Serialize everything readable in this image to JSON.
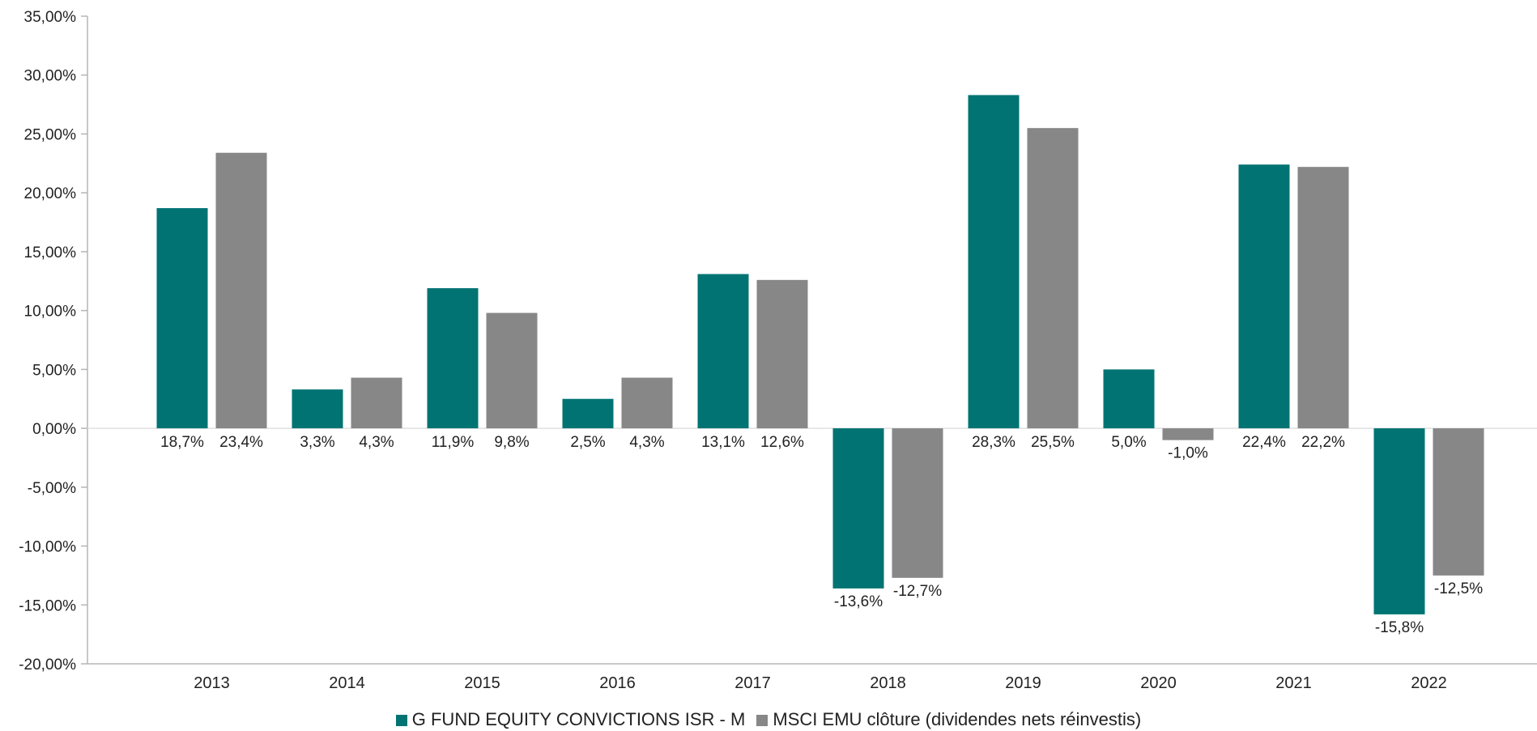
{
  "chart_data": {
    "type": "bar",
    "title": "",
    "xlabel": "",
    "ylabel": "",
    "categories": [
      "2013",
      "2014",
      "2015",
      "2016",
      "2017",
      "2018",
      "2019",
      "2020",
      "2021",
      "2022"
    ],
    "ylim": [
      -20,
      35
    ],
    "yticks": [
      35,
      30,
      25,
      20,
      15,
      10,
      5,
      0,
      -5,
      -10,
      -15,
      -20
    ],
    "ytick_labels": [
      "35,00%",
      "30,00%",
      "25,00%",
      "20,00%",
      "15,00%",
      "10,00%",
      "5,00%",
      "0,00%",
      "-5,00%",
      "-10,00%",
      "-15,00%",
      "-20,00%"
    ],
    "grid": false,
    "legend_position": "bottom",
    "series": [
      {
        "name": "G FUND EQUITY CONVICTIONS ISR - M",
        "color": "#017373",
        "values": [
          18.7,
          3.3,
          11.9,
          2.5,
          13.1,
          -13.6,
          28.3,
          5.0,
          22.4,
          -15.8
        ],
        "labels": [
          "18,7%",
          "3,3%",
          "11,9%",
          "2,5%",
          "13,1%",
          "-13,6%",
          "28,3%",
          "5,0%",
          "22,4%",
          "-15,8%"
        ]
      },
      {
        "name": "MSCI EMU clôture (dividendes nets réinvestis)",
        "color": "#878787",
        "values": [
          23.4,
          4.3,
          9.8,
          4.3,
          12.6,
          -12.7,
          25.5,
          -1.0,
          22.2,
          -12.5
        ],
        "labels": [
          "23,4%",
          "4,3%",
          "9,8%",
          "4,3%",
          "12,6%",
          "-12,7%",
          "25,5%",
          "-1,0%",
          "22,2%",
          "-12,5%"
        ]
      }
    ]
  }
}
